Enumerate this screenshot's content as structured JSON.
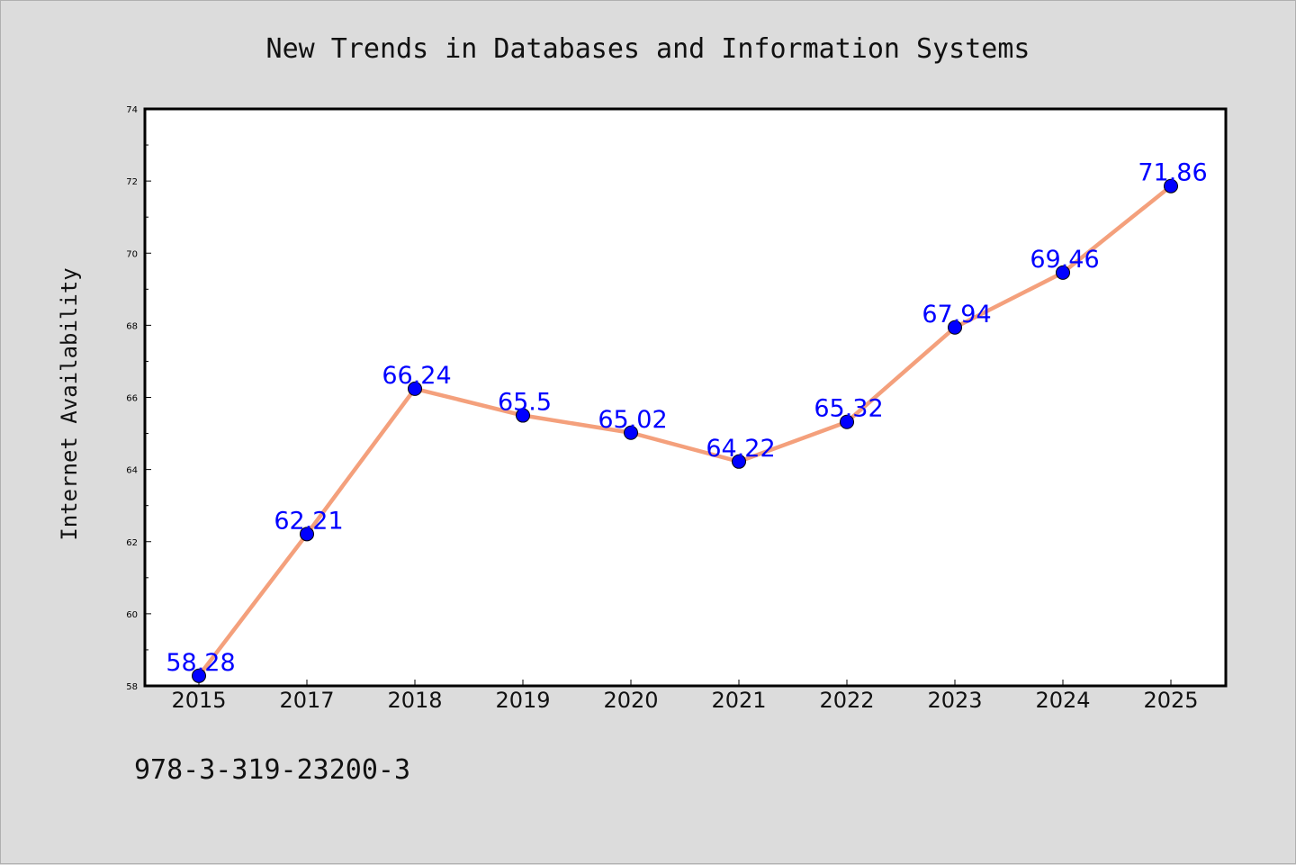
{
  "chart_data": {
    "type": "line",
    "title": "New Trends in Databases and Information Systems",
    "xlabel": "",
    "ylabel": "Internet Availability",
    "categories": [
      "2015",
      "2017",
      "2018",
      "2019",
      "2020",
      "2021",
      "2022",
      "2023",
      "2024",
      "2025"
    ],
    "series": [
      {
        "values": [
          58.28,
          62.21,
          66.24,
          65.5,
          65.02,
          64.22,
          65.32,
          67.94,
          69.46,
          71.86
        ],
        "line_color": "#f4a07c",
        "marker_color": "#0000ff"
      }
    ],
    "data_labels": [
      "58.28",
      "62.21",
      "66.24",
      "65.5",
      "65.02",
      "64.22",
      "65.32",
      "67.94",
      "69.46",
      "71.86"
    ],
    "ylim": [
      58,
      74
    ],
    "yticks": [
      "58",
      "60",
      "62",
      "64",
      "66",
      "68",
      "70",
      "72",
      "74"
    ],
    "grid": false,
    "legend": "none"
  },
  "footer": {
    "isbn": "978-3-319-23200-3"
  },
  "colors": {
    "background": "#dcdcdc",
    "plot_area": "#ffffff",
    "line": "#f4a07c",
    "marker": "#0000ff",
    "data_label": "#0000ff"
  }
}
